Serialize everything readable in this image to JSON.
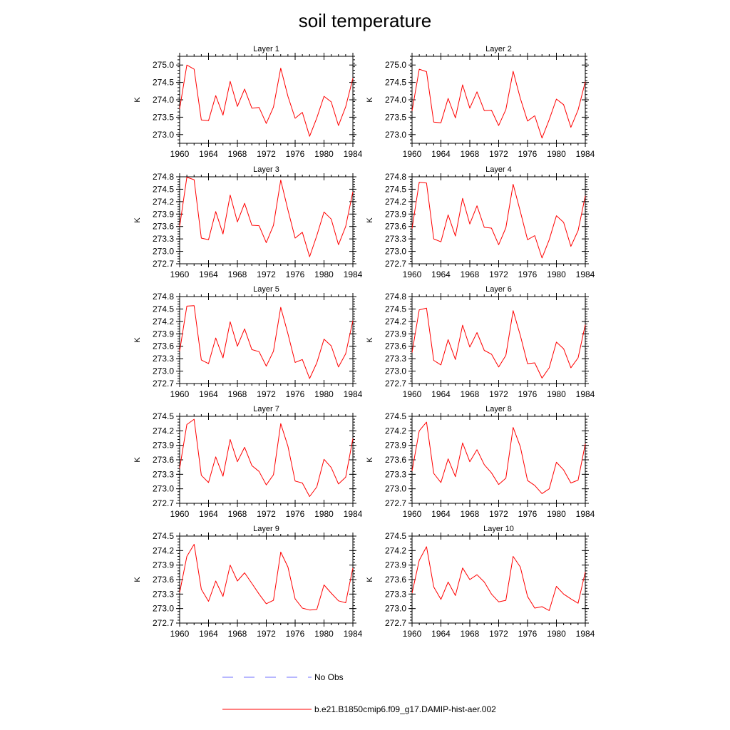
{
  "title": "soil temperature",
  "legend": {
    "entries": [
      {
        "label": "No Obs",
        "color": "#6f6fff",
        "dash": true
      },
      {
        "label": "b.e21.B1850cmip6.f09_g17.DAMIP-hist-aer.002",
        "color": "#ff0000",
        "dash": false
      }
    ]
  },
  "chart_data": [
    {
      "type": "line",
      "title": "Layer 1",
      "ylabel": "K",
      "xlim": [
        1960,
        1984
      ],
      "ylim": [
        272.75,
        275.25
      ],
      "yticks": [
        273.0,
        273.5,
        274.0,
        274.5,
        275.0
      ],
      "ytick_labels": [
        "273.0",
        "273.5",
        "274.0",
        "274.5",
        "275.0"
      ],
      "xticks": [
        1960,
        1964,
        1968,
        1972,
        1976,
        1980,
        1984
      ],
      "xtick_labels": [
        "1960",
        "1964",
        "1968",
        "1972",
        "1976",
        "1980",
        "1984"
      ],
      "x": [
        1960,
        1961,
        1962,
        1963,
        1964,
        1965,
        1966,
        1967,
        1968,
        1969,
        1970,
        1971,
        1972,
        1973,
        1974,
        1975,
        1976,
        1977,
        1978,
        1979,
        1980,
        1981,
        1982,
        1983,
        1984
      ],
      "series": [
        {
          "name": "b.e21.B1850cmip6.f09_g17.DAMIP-hist-aer.002",
          "color": "#ff0000",
          "values": [
            273.74,
            275.0,
            274.88,
            273.42,
            273.4,
            274.12,
            273.56,
            274.53,
            273.81,
            274.31,
            273.76,
            273.78,
            273.32,
            273.79,
            274.91,
            274.1,
            273.47,
            273.64,
            272.95,
            273.48,
            274.1,
            273.94,
            273.26,
            273.8,
            274.62
          ]
        }
      ]
    },
    {
      "type": "line",
      "title": "Layer 2",
      "ylabel": "K",
      "xlim": [
        1960,
        1984
      ],
      "ylim": [
        272.75,
        275.25
      ],
      "yticks": [
        273.0,
        273.5,
        274.0,
        274.5,
        275.0
      ],
      "ytick_labels": [
        "273.0",
        "273.5",
        "274.0",
        "274.5",
        "275.0"
      ],
      "xticks": [
        1960,
        1964,
        1968,
        1972,
        1976,
        1980,
        1984
      ],
      "xtick_labels": [
        "1960",
        "1964",
        "1968",
        "1972",
        "1976",
        "1980",
        "1984"
      ],
      "x": [
        1960,
        1961,
        1962,
        1963,
        1964,
        1965,
        1966,
        1967,
        1968,
        1969,
        1970,
        1971,
        1972,
        1973,
        1974,
        1975,
        1976,
        1977,
        1978,
        1979,
        1980,
        1981,
        1982,
        1983,
        1984
      ],
      "series": [
        {
          "name": "b.e21.B1850cmip6.f09_g17.DAMIP-hist-aer.002",
          "color": "#ff0000",
          "values": [
            273.68,
            274.88,
            274.81,
            273.36,
            273.34,
            274.04,
            273.48,
            274.43,
            273.76,
            274.23,
            273.69,
            273.7,
            273.26,
            273.72,
            274.82,
            274.04,
            273.39,
            273.54,
            272.9,
            273.43,
            274.02,
            273.86,
            273.21,
            273.71,
            274.52
          ]
        }
      ]
    },
    {
      "type": "line",
      "title": "Layer 3",
      "ylabel": "K",
      "xlim": [
        1960,
        1984
      ],
      "ylim": [
        272.7,
        274.8
      ],
      "yticks": [
        272.7,
        273.0,
        273.3,
        273.6,
        273.9,
        274.2,
        274.5,
        274.8
      ],
      "ytick_labels": [
        "272.7",
        "273.0",
        "273.3",
        "273.6",
        "273.9",
        "274.2",
        "274.5",
        "274.8"
      ],
      "xticks": [
        1960,
        1964,
        1968,
        1972,
        1976,
        1980,
        1984
      ],
      "xtick_labels": [
        "1960",
        "1964",
        "1968",
        "1972",
        "1976",
        "1980",
        "1984"
      ],
      "x": [
        1960,
        1961,
        1962,
        1963,
        1964,
        1965,
        1966,
        1967,
        1968,
        1969,
        1970,
        1971,
        1972,
        1973,
        1974,
        1975,
        1976,
        1977,
        1978,
        1979,
        1980,
        1981,
        1982,
        1983,
        1984
      ],
      "series": [
        {
          "name": "b.e21.B1850cmip6.f09_g17.DAMIP-hist-aer.002",
          "color": "#ff0000",
          "values": [
            273.6,
            274.79,
            274.73,
            273.32,
            273.28,
            273.96,
            273.42,
            274.36,
            273.71,
            274.16,
            273.63,
            273.62,
            273.21,
            273.63,
            274.72,
            274.0,
            273.32,
            273.46,
            272.87,
            273.38,
            273.95,
            273.78,
            273.16,
            273.6,
            274.44
          ]
        }
      ]
    },
    {
      "type": "line",
      "title": "Layer 4",
      "ylabel": "K",
      "xlim": [
        1960,
        1984
      ],
      "ylim": [
        272.7,
        274.8
      ],
      "yticks": [
        272.7,
        273.0,
        273.3,
        273.6,
        273.9,
        274.2,
        274.5,
        274.8
      ],
      "ytick_labels": [
        "272.7",
        "273.0",
        "273.3",
        "273.6",
        "273.9",
        "274.2",
        "274.5",
        "274.8"
      ],
      "xticks": [
        1960,
        1964,
        1968,
        1972,
        1976,
        1980,
        1984
      ],
      "xtick_labels": [
        "1960",
        "1964",
        "1968",
        "1972",
        "1976",
        "1980",
        "1984"
      ],
      "x": [
        1960,
        1961,
        1962,
        1963,
        1964,
        1965,
        1966,
        1967,
        1968,
        1969,
        1970,
        1971,
        1972,
        1973,
        1974,
        1975,
        1976,
        1977,
        1978,
        1979,
        1980,
        1981,
        1982,
        1983,
        1984
      ],
      "series": [
        {
          "name": "b.e21.B1850cmip6.f09_g17.DAMIP-hist-aer.002",
          "color": "#ff0000",
          "values": [
            273.55,
            274.67,
            274.65,
            273.3,
            273.23,
            273.88,
            273.37,
            274.28,
            273.66,
            274.1,
            273.58,
            273.56,
            273.16,
            273.57,
            274.62,
            273.96,
            273.28,
            273.38,
            272.84,
            273.28,
            273.86,
            273.7,
            273.12,
            273.5,
            274.34
          ]
        }
      ]
    },
    {
      "type": "line",
      "title": "Layer 5",
      "ylabel": "K",
      "xlim": [
        1960,
        1984
      ],
      "ylim": [
        272.7,
        274.8
      ],
      "yticks": [
        272.7,
        273.0,
        273.3,
        273.6,
        273.9,
        274.2,
        274.5,
        274.8
      ],
      "ytick_labels": [
        "272.7",
        "273.0",
        "273.3",
        "273.6",
        "273.9",
        "274.2",
        "274.5",
        "274.8"
      ],
      "xticks": [
        1960,
        1964,
        1968,
        1972,
        1976,
        1980,
        1984
      ],
      "xtick_labels": [
        "1960",
        "1964",
        "1968",
        "1972",
        "1976",
        "1980",
        "1984"
      ],
      "x": [
        1960,
        1961,
        1962,
        1963,
        1964,
        1965,
        1966,
        1967,
        1968,
        1969,
        1970,
        1971,
        1972,
        1973,
        1974,
        1975,
        1976,
        1977,
        1978,
        1979,
        1980,
        1981,
        1982,
        1983,
        1984
      ],
      "series": [
        {
          "name": "b.e21.B1850cmip6.f09_g17.DAMIP-hist-aer.002",
          "color": "#ff0000",
          "values": [
            273.48,
            274.57,
            274.58,
            273.27,
            273.18,
            273.8,
            273.32,
            274.19,
            273.6,
            274.02,
            273.52,
            273.47,
            273.12,
            273.48,
            274.54,
            273.9,
            273.21,
            273.28,
            272.82,
            273.2,
            273.77,
            273.61,
            273.1,
            273.42,
            274.22
          ]
        }
      ]
    },
    {
      "type": "line",
      "title": "Layer 6",
      "ylabel": "K",
      "xlim": [
        1960,
        1984
      ],
      "ylim": [
        272.7,
        274.8
      ],
      "yticks": [
        272.7,
        273.0,
        273.3,
        273.6,
        273.9,
        274.2,
        274.5,
        274.8
      ],
      "ytick_labels": [
        "272.7",
        "273.0",
        "273.3",
        "273.6",
        "273.9",
        "274.2",
        "274.5",
        "274.8"
      ],
      "xticks": [
        1960,
        1964,
        1968,
        1972,
        1976,
        1980,
        1984
      ],
      "xtick_labels": [
        "1960",
        "1964",
        "1968",
        "1972",
        "1976",
        "1980",
        "1984"
      ],
      "x": [
        1960,
        1961,
        1962,
        1963,
        1964,
        1965,
        1966,
        1967,
        1968,
        1969,
        1970,
        1971,
        1972,
        1973,
        1974,
        1975,
        1976,
        1977,
        1978,
        1979,
        1980,
        1981,
        1982,
        1983,
        1984
      ],
      "series": [
        {
          "name": "b.e21.B1850cmip6.f09_g17.DAMIP-hist-aer.002",
          "color": "#ff0000",
          "values": [
            273.45,
            274.48,
            274.52,
            273.26,
            273.15,
            273.76,
            273.28,
            274.11,
            273.58,
            273.93,
            273.5,
            273.41,
            273.1,
            273.38,
            274.46,
            273.86,
            273.18,
            273.2,
            272.83,
            273.08,
            273.7,
            273.54,
            273.08,
            273.32,
            274.12
          ]
        }
      ]
    },
    {
      "type": "line",
      "title": "Layer 7",
      "ylabel": "K",
      "xlim": [
        1960,
        1984
      ],
      "ylim": [
        272.7,
        274.5
      ],
      "yticks": [
        272.7,
        273.0,
        273.3,
        273.6,
        273.9,
        274.2,
        274.5
      ],
      "ytick_labels": [
        "272.7",
        "273.0",
        "273.3",
        "273.6",
        "273.9",
        "274.2",
        "274.5"
      ],
      "xticks": [
        1960,
        1964,
        1968,
        1972,
        1976,
        1980,
        1984
      ],
      "xtick_labels": [
        "1960",
        "1964",
        "1968",
        "1972",
        "1976",
        "1980",
        "1984"
      ],
      "x": [
        1960,
        1961,
        1962,
        1963,
        1964,
        1965,
        1966,
        1967,
        1968,
        1969,
        1970,
        1971,
        1972,
        1973,
        1974,
        1975,
        1976,
        1977,
        1978,
        1979,
        1980,
        1981,
        1982,
        1983,
        1984
      ],
      "series": [
        {
          "name": "b.e21.B1850cmip6.f09_g17.DAMIP-hist-aer.002",
          "color": "#ff0000",
          "values": [
            273.42,
            274.33,
            274.44,
            273.28,
            273.13,
            273.66,
            273.26,
            274.02,
            273.56,
            273.86,
            273.48,
            273.36,
            273.08,
            273.29,
            274.35,
            273.88,
            273.16,
            273.12,
            272.84,
            273.04,
            273.61,
            273.44,
            273.1,
            273.24,
            274.04
          ]
        }
      ]
    },
    {
      "type": "line",
      "title": "Layer 8",
      "ylabel": "K",
      "xlim": [
        1960,
        1984
      ],
      "ylim": [
        272.7,
        274.5
      ],
      "yticks": [
        272.7,
        273.0,
        273.3,
        273.6,
        273.9,
        274.2,
        274.5
      ],
      "ytick_labels": [
        "272.7",
        "273.0",
        "273.3",
        "273.6",
        "273.9",
        "274.2",
        "274.5"
      ],
      "xticks": [
        1960,
        1964,
        1968,
        1972,
        1976,
        1980,
        1984
      ],
      "xtick_labels": [
        "1960",
        "1964",
        "1968",
        "1972",
        "1976",
        "1980",
        "1984"
      ],
      "x": [
        1960,
        1961,
        1962,
        1963,
        1964,
        1965,
        1966,
        1967,
        1968,
        1969,
        1970,
        1971,
        1972,
        1973,
        1974,
        1975,
        1976,
        1977,
        1978,
        1979,
        1980,
        1981,
        1982,
        1983,
        1984
      ],
      "series": [
        {
          "name": "b.e21.B1850cmip6.f09_g17.DAMIP-hist-aer.002",
          "color": "#ff0000",
          "values": [
            273.37,
            274.2,
            274.38,
            273.32,
            273.13,
            273.62,
            273.25,
            273.95,
            273.56,
            273.81,
            273.5,
            273.33,
            273.09,
            273.22,
            274.27,
            273.87,
            273.17,
            273.07,
            272.9,
            273.0,
            273.55,
            273.39,
            273.12,
            273.18,
            273.93
          ]
        }
      ]
    },
    {
      "type": "line",
      "title": "Layer 9",
      "ylabel": "K",
      "xlim": [
        1960,
        1984
      ],
      "ylim": [
        272.7,
        274.5
      ],
      "yticks": [
        272.7,
        273.0,
        273.3,
        273.6,
        273.9,
        274.2,
        274.5
      ],
      "ytick_labels": [
        "272.7",
        "273.0",
        "273.3",
        "273.6",
        "273.9",
        "274.2",
        "274.5"
      ],
      "xticks": [
        1960,
        1964,
        1968,
        1972,
        1976,
        1980,
        1984
      ],
      "xtick_labels": [
        "1960",
        "1964",
        "1968",
        "1972",
        "1976",
        "1980",
        "1984"
      ],
      "x": [
        1960,
        1961,
        1962,
        1963,
        1964,
        1965,
        1966,
        1967,
        1968,
        1969,
        1970,
        1971,
        1972,
        1973,
        1974,
        1975,
        1976,
        1977,
        1978,
        1979,
        1980,
        1981,
        1982,
        1983,
        1984
      ],
      "series": [
        {
          "name": "b.e21.B1850cmip6.f09_g17.DAMIP-hist-aer.002",
          "color": "#ff0000",
          "values": [
            273.33,
            274.08,
            274.33,
            273.4,
            273.15,
            273.57,
            273.25,
            273.9,
            273.57,
            273.74,
            273.52,
            273.3,
            273.1,
            273.17,
            274.17,
            273.86,
            273.2,
            273.01,
            272.97,
            272.98,
            273.49,
            273.32,
            273.16,
            273.12,
            273.84
          ]
        }
      ]
    },
    {
      "type": "line",
      "title": "Layer 10",
      "ylabel": "K",
      "xlim": [
        1960,
        1984
      ],
      "ylim": [
        272.7,
        274.5
      ],
      "yticks": [
        272.7,
        273.0,
        273.3,
        273.6,
        273.9,
        274.2,
        274.5
      ],
      "ytick_labels": [
        "272.7",
        "273.0",
        "273.3",
        "273.6",
        "273.9",
        "274.2",
        "274.5"
      ],
      "xticks": [
        1960,
        1964,
        1968,
        1972,
        1976,
        1980,
        1984
      ],
      "xtick_labels": [
        "1960",
        "1964",
        "1968",
        "1972",
        "1976",
        "1980",
        "1984"
      ],
      "x": [
        1960,
        1961,
        1962,
        1963,
        1964,
        1965,
        1966,
        1967,
        1968,
        1969,
        1970,
        1971,
        1972,
        1973,
        1974,
        1975,
        1976,
        1977,
        1978,
        1979,
        1980,
        1981,
        1982,
        1983,
        1984
      ],
      "series": [
        {
          "name": "b.e21.B1850cmip6.f09_g17.DAMIP-hist-aer.002",
          "color": "#ff0000",
          "values": [
            273.32,
            274.0,
            274.28,
            273.45,
            273.19,
            273.55,
            273.27,
            273.84,
            273.6,
            273.7,
            273.55,
            273.3,
            273.14,
            273.17,
            274.08,
            273.86,
            273.25,
            273.01,
            273.04,
            272.96,
            273.46,
            273.3,
            273.2,
            273.11,
            273.76
          ]
        }
      ]
    }
  ]
}
